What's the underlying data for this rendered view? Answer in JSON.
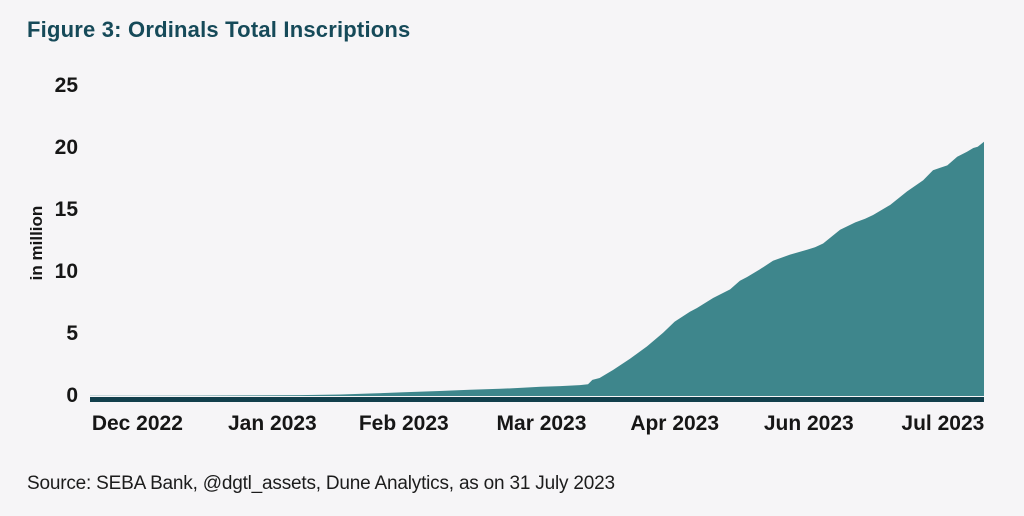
{
  "figure": {
    "title": "Figure 3: Ordinals Total Inscriptions",
    "source": "Source: SEBA Bank, @dgtl_assets, Dune Analytics, as on 31 July 2023"
  },
  "colors": {
    "background": "#f6f5f7",
    "area_fill": "#3e868c",
    "axis_line": "#123f4c",
    "title_text": "#164a59",
    "label_text": "#161616"
  },
  "chart_data": {
    "type": "area",
    "title": "Figure 3: Ordinals Total Inscriptions",
    "xlabel": "",
    "ylabel": "in million",
    "ylim": [
      0,
      25
    ],
    "grid": false,
    "legend": false,
    "series_name": "Ordinals total inscriptions (million)",
    "yticks": [
      0,
      5,
      10,
      15,
      20,
      25
    ],
    "xticks": [
      "Dec 2022",
      "Jan 2023",
      "Feb 2023",
      "Mar 2023",
      "Apr 2023",
      "Jun 2023",
      "Jul 2023"
    ],
    "xtick_positions": [
      0.053,
      0.204,
      0.351,
      0.505,
      0.654,
      0.804,
      0.954
    ],
    "tick_values_million": {
      "Dec 2022": 0.0,
      "Jan 2023": 0.03,
      "Feb 2023": 0.3,
      "Mar 2023": 0.75,
      "Apr 2023": 6.0,
      "Jun 2023": 11.8,
      "Jul 2023": 18.5
    },
    "end_value_million": 20.5,
    "points": [
      [
        0.0,
        0.02
      ],
      [
        0.06,
        0.02
      ],
      [
        0.123,
        0.03
      ],
      [
        0.179,
        0.05
      ],
      [
        0.235,
        0.07
      ],
      [
        0.28,
        0.12
      ],
      [
        0.313,
        0.2
      ],
      [
        0.351,
        0.3
      ],
      [
        0.391,
        0.4
      ],
      [
        0.425,
        0.5
      ],
      [
        0.459,
        0.58
      ],
      [
        0.481,
        0.65
      ],
      [
        0.504,
        0.75
      ],
      [
        0.526,
        0.8
      ],
      [
        0.548,
        0.88
      ],
      [
        0.557,
        0.95
      ],
      [
        0.562,
        1.3
      ],
      [
        0.57,
        1.45
      ],
      [
        0.578,
        1.8
      ],
      [
        0.585,
        2.1
      ],
      [
        0.604,
        3.0
      ],
      [
        0.623,
        4.0
      ],
      [
        0.641,
        5.1
      ],
      [
        0.654,
        6.0
      ],
      [
        0.671,
        6.8
      ],
      [
        0.679,
        7.1
      ],
      [
        0.697,
        7.9
      ],
      [
        0.716,
        8.6
      ],
      [
        0.727,
        9.3
      ],
      [
        0.735,
        9.6
      ],
      [
        0.749,
        10.2
      ],
      [
        0.764,
        10.9
      ],
      [
        0.783,
        11.4
      ],
      [
        0.802,
        11.8
      ],
      [
        0.811,
        12.0
      ],
      [
        0.82,
        12.3
      ],
      [
        0.839,
        13.4
      ],
      [
        0.856,
        14.0
      ],
      [
        0.867,
        14.3
      ],
      [
        0.876,
        14.6
      ],
      [
        0.895,
        15.4
      ],
      [
        0.914,
        16.5
      ],
      [
        0.932,
        17.4
      ],
      [
        0.943,
        18.2
      ],
      [
        0.951,
        18.4
      ],
      [
        0.959,
        18.6
      ],
      [
        0.97,
        19.3
      ],
      [
        0.981,
        19.7
      ],
      [
        0.988,
        20.0
      ],
      [
        0.993,
        20.1
      ],
      [
        1.0,
        20.5
      ]
    ]
  }
}
